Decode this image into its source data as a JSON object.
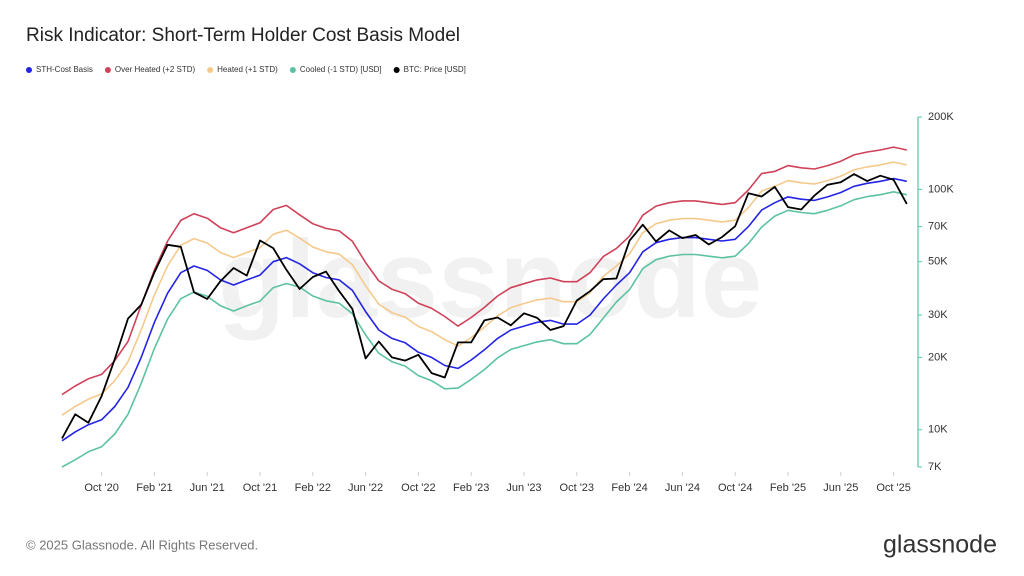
{
  "chart_data": {
    "type": "line",
    "title": "Risk Indicator: Short-Term Holder Cost Basis Model",
    "watermark": "glassnode",
    "footer": "© 2025 Glassnode. All Rights Reserved.",
    "logo": "glassnode",
    "log_scale": true,
    "x": [
      "2020-07",
      "2020-08",
      "2020-09",
      "2020-10",
      "2020-11",
      "2020-12",
      "2021-01",
      "2021-02",
      "2021-03",
      "2021-04",
      "2021-05",
      "2021-06",
      "2021-07",
      "2021-08",
      "2021-09",
      "2021-10",
      "2021-11",
      "2021-12",
      "2022-01",
      "2022-02",
      "2022-03",
      "2022-04",
      "2022-05",
      "2022-06",
      "2022-07",
      "2022-08",
      "2022-09",
      "2022-10",
      "2022-11",
      "2022-12",
      "2023-01",
      "2023-02",
      "2023-03",
      "2023-04",
      "2023-05",
      "2023-06",
      "2023-07",
      "2023-08",
      "2023-09",
      "2023-10",
      "2023-11",
      "2023-12",
      "2024-01",
      "2024-02",
      "2024-03",
      "2024-04",
      "2024-05",
      "2024-06",
      "2024-07",
      "2024-08",
      "2024-09",
      "2024-10",
      "2024-11",
      "2024-12",
      "2025-01",
      "2025-02",
      "2025-03",
      "2025-04",
      "2025-05",
      "2025-06",
      "2025-07",
      "2025-08",
      "2025-09",
      "2025-10",
      "2025-11"
    ],
    "xticks": [
      {
        "value": "2020-10",
        "label": "Oct '20"
      },
      {
        "value": "2021-02",
        "label": "Feb '21"
      },
      {
        "value": "2021-06",
        "label": "Jun '21"
      },
      {
        "value": "2021-10",
        "label": "Oct '21"
      },
      {
        "value": "2022-02",
        "label": "Feb '22"
      },
      {
        "value": "2022-06",
        "label": "Jun '22"
      },
      {
        "value": "2022-10",
        "label": "Oct '22"
      },
      {
        "value": "2023-02",
        "label": "Feb '23"
      },
      {
        "value": "2023-06",
        "label": "Jun '23"
      },
      {
        "value": "2023-10",
        "label": "Oct '23"
      },
      {
        "value": "2024-02",
        "label": "Feb '24"
      },
      {
        "value": "2024-06",
        "label": "Jun '24"
      },
      {
        "value": "2024-10",
        "label": "Oct '24"
      },
      {
        "value": "2025-02",
        "label": "Feb '25"
      },
      {
        "value": "2025-06",
        "label": "Jun '25"
      },
      {
        "value": "2025-10",
        "label": "Oct '25"
      }
    ],
    "ylim": [
      7000,
      200000
    ],
    "yticks": [
      {
        "value": 7000,
        "label": "7K"
      },
      {
        "value": 10000,
        "label": "10K"
      },
      {
        "value": 20000,
        "label": "20K"
      },
      {
        "value": 30000,
        "label": "30K"
      },
      {
        "value": 50000,
        "label": "50K"
      },
      {
        "value": 70000,
        "label": "70K"
      },
      {
        "value": 100000,
        "label": "100K"
      },
      {
        "value": 200000,
        "label": "200K"
      }
    ],
    "series": [
      {
        "name": "STH-Cost Basis",
        "color": "#2424e6",
        "values": [
          9000,
          9800,
          10500,
          11000,
          12500,
          15000,
          20000,
          28000,
          37000,
          45000,
          48000,
          46000,
          42000,
          40000,
          42000,
          44000,
          50000,
          52000,
          49000,
          45000,
          43000,
          42000,
          38000,
          31000,
          26000,
          24000,
          23000,
          21000,
          20000,
          18500,
          18000,
          19500,
          21500,
          24000,
          26000,
          27000,
          28000,
          28500,
          27500,
          27500,
          30000,
          35000,
          40000,
          45000,
          55000,
          60000,
          62000,
          63000,
          63000,
          62000,
          61000,
          62000,
          70000,
          82000,
          88000,
          93000,
          91000,
          90000,
          93000,
          97000,
          103000,
          106000,
          108000,
          111000,
          108000
        ]
      },
      {
        "name": "Over Heated (+2 STD)",
        "color": "#cf4259",
        "values": [
          14000,
          15200,
          16300,
          17000,
          19400,
          23300,
          33000,
          46200,
          61000,
          74300,
          79200,
          75900,
          69300,
          66000,
          69300,
          72600,
          82500,
          85800,
          78400,
          72000,
          68800,
          67200,
          60800,
          49600,
          41600,
          38400,
          36800,
          33600,
          32000,
          29600,
          27000,
          29300,
          32300,
          36000,
          39000,
          40500,
          42000,
          42800,
          41300,
          41300,
          45000,
          52500,
          56800,
          63900,
          78100,
          85200,
          88000,
          89500,
          89500,
          88000,
          86600,
          88000,
          99400,
          116400,
          118800,
          125600,
          122900,
          121500,
          125600,
          131000,
          139100,
          143100,
          145800,
          149900,
          145800
        ]
      },
      {
        "name": "Heated (+1 STD)",
        "color": "#f5c98c",
        "values": [
          11500,
          12500,
          13400,
          14100,
          16000,
          19200,
          26000,
          36400,
          48100,
          58500,
          62400,
          59800,
          54600,
          52000,
          54600,
          57200,
          65000,
          67600,
          62700,
          57600,
          55000,
          53800,
          48600,
          39700,
          33300,
          30700,
          29400,
          26900,
          25600,
          23700,
          22300,
          24200,
          26700,
          29800,
          32200,
          33500,
          34700,
          35300,
          34100,
          34100,
          37200,
          43400,
          48000,
          54000,
          66000,
          72000,
          74400,
          75600,
          75600,
          74400,
          73200,
          74400,
          84000,
          98400,
          103000,
          108800,
          106500,
          105300,
          108800,
          113500,
          120500,
          124000,
          126400,
          129900,
          126400
        ]
      },
      {
        "name": "Cooled (-1 STD) [USD]",
        "color": "#5cc2a3",
        "values": [
          7000,
          7500,
          8100,
          8500,
          9600,
          11600,
          15600,
          21800,
          28900,
          35100,
          37400,
          35900,
          32800,
          31200,
          32800,
          34300,
          39000,
          40600,
          39200,
          36000,
          34400,
          33600,
          30400,
          24800,
          20800,
          19200,
          18400,
          16800,
          16000,
          14800,
          14900,
          16200,
          17800,
          19900,
          21600,
          22400,
          23200,
          23700,
          22800,
          22800,
          24900,
          29100,
          34000,
          38300,
          46800,
          51000,
          52700,
          53600,
          53600,
          52700,
          51900,
          52700,
          59500,
          69700,
          77400,
          81800,
          80100,
          79200,
          81800,
          85400,
          90600,
          93300,
          95000,
          97700,
          95000
        ]
      },
      {
        "name": "BTC: Price [USD]",
        "color": "#000000",
        "values": [
          9200,
          11600,
          10700,
          13800,
          19700,
          29000,
          33100,
          45200,
          58800,
          57700,
          37300,
          35000,
          41500,
          47100,
          43800,
          61300,
          57000,
          46300,
          38500,
          43200,
          45500,
          37700,
          31800,
          19800,
          23300,
          20000,
          19400,
          20500,
          17200,
          16500,
          23100,
          23100,
          28500,
          29300,
          27200,
          30500,
          29200,
          26000,
          27000,
          34500,
          37700,
          42300,
          42600,
          61200,
          71300,
          60700,
          67500,
          62700,
          64600,
          59000,
          63300,
          70300,
          96400,
          93400,
          102400,
          84400,
          82500,
          94200,
          104600,
          107100,
          115800,
          108200,
          114000,
          109600,
          87000
        ]
      }
    ]
  }
}
